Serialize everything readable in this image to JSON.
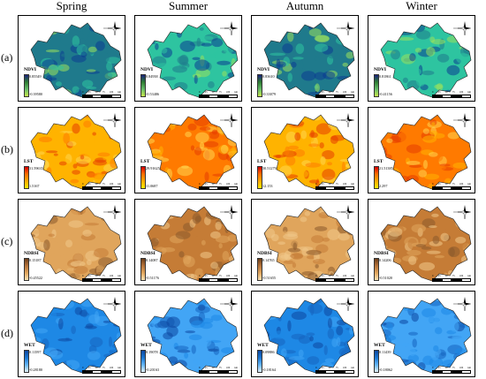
{
  "columns": [
    "Spring",
    "Summer",
    "Autumn",
    "Winter"
  ],
  "rows": [
    {
      "label": "(a)",
      "index": "NDVI",
      "palette": [
        "#0b3d91",
        "#1f7a8c",
        "#2ec4a0",
        "#9be15d"
      ],
      "bar": [
        "#1a237e",
        "#2e7d32",
        "#66bb6a",
        "#c5e84b"
      ],
      "panels": [
        {
          "max": "0.85549",
          "min": "-0.39580"
        },
        {
          "max": "0.84938",
          "min": "-0.53486"
        },
        {
          "max": "0.83610",
          "min": "-0.33079"
        },
        {
          "max": "0.81861",
          "min": "-0.41156"
        }
      ]
    },
    {
      "label": "(b)",
      "index": "LST",
      "palette": [
        "#ffd54f",
        "#ffb300",
        "#ff7a00",
        "#e53d00"
      ],
      "bar": [
        "#d50000",
        "#ff6d00",
        "#ffab00",
        "#ffea00"
      ],
      "panels": [
        {
          "max": "31.59635",
          "min": "1.5167"
        },
        {
          "max": "29.91625",
          "min": "11.0687"
        },
        {
          "max": "30.51279",
          "min": "12.153"
        },
        {
          "max": "21.51385",
          "min": "2.297"
        }
      ]
    },
    {
      "label": "(c)",
      "index": "NDBSI",
      "palette": [
        "#f0c98a",
        "#e0a55c",
        "#c57c36",
        "#8b5a2b"
      ],
      "bar": [
        "#6d3f1a",
        "#b5733a",
        "#e0a55c",
        "#fbe3b5"
      ],
      "panels": [
        {
          "max": "0.15187",
          "min": "-0.45522"
        },
        {
          "max": "0.14087",
          "min": "-0.51176"
        },
        {
          "max": "0.14765",
          "min": "-0.51655"
        },
        {
          "max": "0.14206",
          "min": "-0.51020"
        }
      ]
    },
    {
      "label": "(d)",
      "index": "WET",
      "palette": [
        "#1565c0",
        "#1e88e5",
        "#42a5f5",
        "#0d47a1"
      ],
      "bar": [
        "#0d47a1",
        "#1976d2",
        "#64b5f6",
        "#e3f2fd"
      ],
      "panels": [
        {
          "max": "0.11597",
          "min": "-0.28180"
        },
        {
          "max": "0.19078",
          "min": "-0.20163"
        },
        {
          "max": "0.09886",
          "min": "-0.18164"
        },
        {
          "max": "0.11439",
          "min": "-0.18062"
        }
      ]
    }
  ],
  "scale_labels": [
    "0",
    "25",
    "50",
    "75",
    "100"
  ],
  "scale_unit": "km",
  "north_symbol": "compass-rose-icon"
}
